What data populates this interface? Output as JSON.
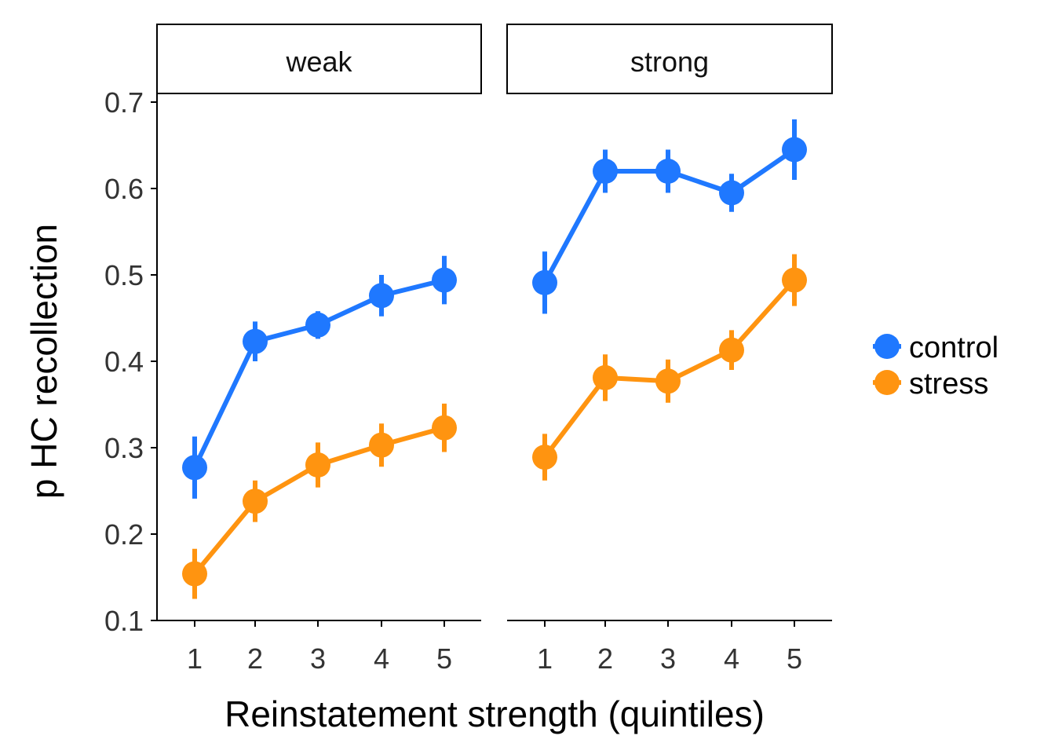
{
  "chart_data": {
    "type": "line",
    "xlabel": "Reinstatement strength (quintiles)",
    "ylabel": "p HC recollection",
    "ylim": [
      0.1,
      0.7
    ],
    "yticks": [
      "0.1",
      "0.2",
      "0.3",
      "0.4",
      "0.5",
      "0.6",
      "0.7"
    ],
    "categories": [
      "1",
      "2",
      "3",
      "4",
      "5"
    ],
    "grid": false,
    "legend_position": "right",
    "colors": {
      "control": "#1f78ff",
      "stress": "#ff9410"
    },
    "panels": [
      {
        "label": "weak",
        "series": [
          {
            "name": "control",
            "values": [
              0.277,
              0.423,
              0.442,
              0.476,
              0.494
            ],
            "lower": [
              0.241,
              0.4,
              0.426,
              0.452,
              0.466
            ],
            "upper": [
              0.313,
              0.446,
              0.458,
              0.5,
              0.522
            ]
          },
          {
            "name": "stress",
            "values": [
              0.154,
              0.238,
              0.28,
              0.303,
              0.323
            ],
            "lower": [
              0.125,
              0.214,
              0.254,
              0.278,
              0.295
            ],
            "upper": [
              0.183,
              0.262,
              0.306,
              0.328,
              0.351
            ]
          }
        ]
      },
      {
        "label": "strong",
        "series": [
          {
            "name": "control",
            "values": [
              0.491,
              0.62,
              0.62,
              0.595,
              0.645
            ],
            "lower": [
              0.455,
              0.595,
              0.595,
              0.573,
              0.61
            ],
            "upper": [
              0.527,
              0.645,
              0.645,
              0.617,
              0.68
            ]
          },
          {
            "name": "stress",
            "values": [
              0.289,
              0.381,
              0.377,
              0.413,
              0.494
            ],
            "lower": [
              0.262,
              0.354,
              0.352,
              0.39,
              0.464
            ],
            "upper": [
              0.316,
              0.408,
              0.402,
              0.436,
              0.524
            ]
          }
        ]
      }
    ]
  }
}
